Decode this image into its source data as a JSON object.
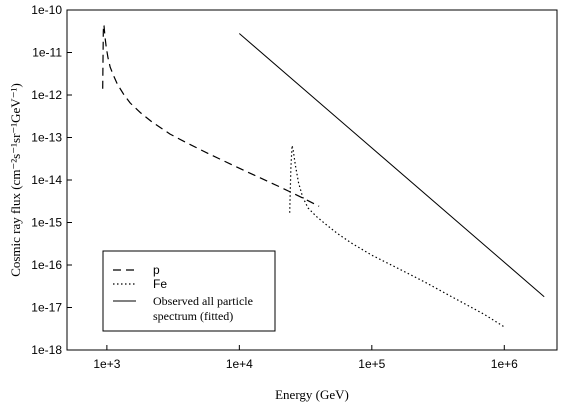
{
  "chart_data": {
    "type": "line",
    "xlabel": "Energy (GeV)",
    "ylabel": "Cosmic ray flux (cm⁻²s⁻¹sr⁻¹GeV⁻¹)",
    "xscale": "log",
    "yscale": "log",
    "xlim": [
      500,
      2500000
    ],
    "ylim": [
      1e-18,
      1e-10
    ],
    "xticks": [
      1000,
      10000,
      100000,
      1000000
    ],
    "xtick_labels": [
      "1e+3",
      "1e+4",
      "1e+5",
      "1e+6"
    ],
    "yticks": [
      1e-18,
      1e-17,
      1e-16,
      1e-15,
      1e-14,
      1e-13,
      1e-12,
      1e-11,
      1e-10
    ],
    "ytick_labels": [
      "1e-18",
      "1e-17",
      "1e-16",
      "1e-15",
      "1e-14",
      "1e-13",
      "1e-12",
      "1e-11",
      "1e-10"
    ],
    "grid": false,
    "legend_position": "bottom-left",
    "series": [
      {
        "name": "p",
        "style": "dashed",
        "color": "#000000",
        "x": [
          930,
          940,
          945,
          952,
          960,
          970,
          990,
          1020,
          1060,
          1120,
          1200,
          1350,
          1500,
          1800,
          2200,
          3000,
          4000,
          6000,
          9000,
          13000,
          20000,
          30000,
          40000
        ],
        "y": [
          1.4e-12,
          3e-11,
          4.5e-11,
          4.3e-11,
          3.2e-11,
          2.2e-11,
          1.3e-11,
          7.5e-12,
          4.5e-12,
          2.9e-12,
          1.8e-12,
          1e-12,
          6.5e-13,
          3.8e-13,
          2.3e-13,
          1.2e-13,
          7.5e-14,
          4e-14,
          2.2e-14,
          1.3e-14,
          7e-15,
          3.8e-15,
          2.4e-15
        ]
      },
      {
        "name": "Fe",
        "style": "dotted",
        "color": "#000000",
        "x": [
          24000,
          24500,
          25000,
          25500,
          26500,
          28000,
          30000,
          33000,
          38000,
          45000,
          55000,
          70000,
          100000,
          150000,
          250000,
          400000,
          700000,
          1000000
        ],
        "y": [
          1.7e-15,
          2e-14,
          6.5e-14,
          5e-14,
          2.2e-14,
          8.5e-15,
          4e-15,
          2.2e-15,
          1.4e-15,
          9e-16,
          5.5e-16,
          3.3e-16,
          1.7e-16,
          9e-17,
          4e-17,
          1.8e-17,
          7e-18,
          3.5e-18
        ]
      },
      {
        "name": "Observed all particle spectrum (fitted)",
        "style": "solid",
        "color": "#000000",
        "x": [
          10000,
          2000000
        ],
        "y": [
          2.8e-11,
          1.8e-17
        ]
      }
    ],
    "legend": [
      {
        "label": "p",
        "style": "dashed"
      },
      {
        "label": "Fe",
        "style": "dotted"
      },
      {
        "label_lines": [
          "Observed all particle",
          "spectrum (fitted)"
        ],
        "style": "solid"
      }
    ]
  }
}
